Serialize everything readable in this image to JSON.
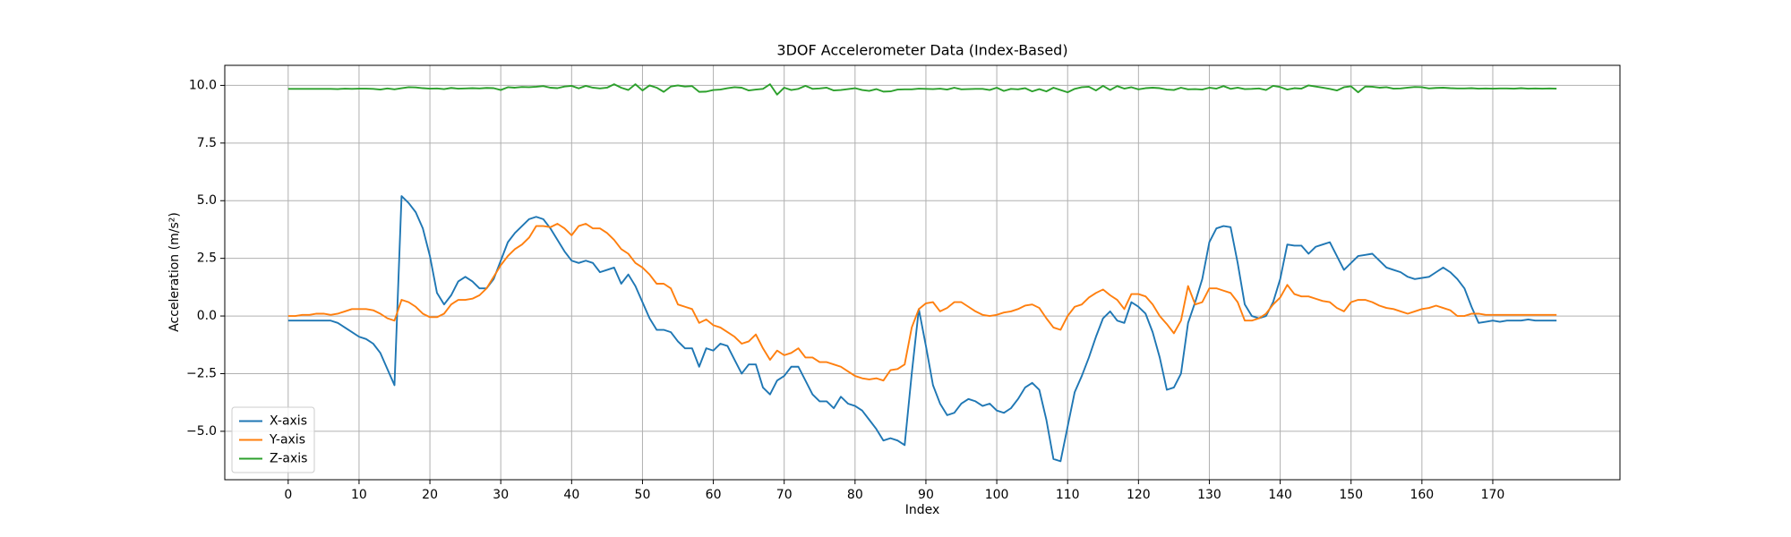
{
  "chart_data": {
    "type": "line",
    "title": "3DOF Accelerometer Data (Index-Based)",
    "x_label": "Index",
    "y_label": "Acceleration (m/s²)",
    "x": [
      0,
      1,
      2,
      3,
      4,
      5,
      6,
      7,
      8,
      9,
      10,
      11,
      12,
      13,
      14,
      15,
      16,
      17,
      18,
      19,
      20,
      21,
      22,
      23,
      24,
      25,
      26,
      27,
      28,
      29,
      30,
      31,
      32,
      33,
      34,
      35,
      36,
      37,
      38,
      39,
      40,
      41,
      42,
      43,
      44,
      45,
      46,
      47,
      48,
      49,
      50,
      51,
      52,
      53,
      54,
      55,
      56,
      57,
      58,
      59,
      60,
      61,
      62,
      63,
      64,
      65,
      66,
      67,
      68,
      69,
      70,
      71,
      72,
      73,
      74,
      75,
      76,
      77,
      78,
      79,
      80,
      81,
      82,
      83,
      84,
      85,
      86,
      87,
      88,
      89,
      90,
      91,
      92,
      93,
      94,
      95,
      96,
      97,
      98,
      99,
      100,
      101,
      102,
      103,
      104,
      105,
      106,
      107,
      108,
      109,
      110,
      111,
      112,
      113,
      114,
      115,
      116,
      117,
      118,
      119,
      120,
      121,
      122,
      123,
      124,
      125,
      126,
      127,
      128,
      129,
      130,
      131,
      132,
      133,
      134,
      135,
      136,
      137,
      138,
      139,
      140,
      141,
      142,
      143,
      144,
      145,
      146,
      147,
      148,
      149,
      150,
      151,
      152,
      153,
      154,
      155,
      156,
      157,
      158,
      159,
      160,
      161,
      162,
      163,
      164,
      165,
      166,
      167,
      168,
      169,
      170,
      171,
      172,
      173,
      174,
      175,
      176,
      177,
      178,
      179
    ],
    "series": [
      {
        "name": "X-axis",
        "color": "#1f77b4",
        "values": [
          -0.2,
          -0.2,
          -0.2,
          -0.2,
          -0.2,
          -0.2,
          -0.2,
          -0.3,
          -0.5,
          -0.7,
          -0.9,
          -1.0,
          -1.2,
          -1.6,
          -2.3,
          -3.0,
          5.2,
          4.9,
          4.5,
          3.8,
          2.6,
          1.0,
          0.5,
          0.9,
          1.5,
          1.7,
          1.5,
          1.2,
          1.2,
          1.6,
          2.4,
          3.2,
          3.6,
          3.9,
          4.2,
          4.3,
          4.2,
          3.8,
          3.3,
          2.8,
          2.4,
          2.3,
          2.4,
          2.3,
          1.9,
          2.0,
          2.1,
          1.4,
          1.8,
          1.3,
          0.6,
          -0.1,
          -0.6,
          -0.6,
          -0.7,
          -1.1,
          -1.4,
          -1.4,
          -2.2,
          -1.4,
          -1.5,
          -1.2,
          -1.3,
          -1.9,
          -2.5,
          -2.1,
          -2.1,
          -3.1,
          -3.4,
          -2.8,
          -2.6,
          -2.2,
          -2.2,
          -2.8,
          -3.4,
          -3.7,
          -3.7,
          -4.0,
          -3.5,
          -3.8,
          -3.9,
          -4.1,
          -4.5,
          -4.9,
          -5.4,
          -5.3,
          -5.4,
          -5.6,
          -2.5,
          0.3,
          -1.3,
          -3.0,
          -3.8,
          -4.3,
          -4.2,
          -3.8,
          -3.6,
          -3.7,
          -3.9,
          -3.8,
          -4.1,
          -4.2,
          -4.0,
          -3.6,
          -3.1,
          -2.9,
          -3.2,
          -4.5,
          -6.2,
          -6.3,
          -4.8,
          -3.3,
          -2.6,
          -1.8,
          -0.9,
          -0.1,
          0.2,
          -0.2,
          -0.3,
          0.6,
          0.4,
          0.1,
          -0.7,
          -1.8,
          -3.2,
          -3.1,
          -2.5,
          -0.3,
          0.6,
          1.6,
          3.2,
          3.8,
          3.9,
          3.85,
          2.3,
          0.5,
          0.0,
          -0.1,
          0.0,
          0.6,
          1.6,
          3.1,
          3.05,
          3.05,
          2.7,
          3.0,
          3.1,
          3.2,
          2.6,
          2.0,
          2.3,
          2.6,
          2.65,
          2.7,
          2.4,
          2.1,
          2.0,
          1.9,
          1.7,
          1.6,
          1.65,
          1.7,
          1.9,
          2.1,
          1.9,
          1.6,
          1.2,
          0.4,
          -0.3,
          -0.25,
          -0.2,
          -0.25,
          -0.2,
          -0.2,
          -0.2,
          -0.15,
          -0.2,
          -0.2,
          -0.2,
          -0.2
        ]
      },
      {
        "name": "Y-axis",
        "color": "#ff7f0e",
        "values": [
          0.0,
          0.0,
          0.05,
          0.05,
          0.1,
          0.1,
          0.05,
          0.1,
          0.2,
          0.3,
          0.3,
          0.3,
          0.25,
          0.1,
          -0.1,
          -0.2,
          0.7,
          0.6,
          0.4,
          0.1,
          -0.05,
          -0.05,
          0.1,
          0.5,
          0.7,
          0.7,
          0.75,
          0.9,
          1.2,
          1.7,
          2.2,
          2.6,
          2.9,
          3.1,
          3.4,
          3.9,
          3.9,
          3.85,
          4.0,
          3.8,
          3.5,
          3.9,
          4.0,
          3.8,
          3.8,
          3.6,
          3.3,
          2.9,
          2.7,
          2.3,
          2.1,
          1.8,
          1.4,
          1.4,
          1.2,
          0.5,
          0.4,
          0.3,
          -0.3,
          -0.15,
          -0.4,
          -0.5,
          -0.7,
          -0.9,
          -1.2,
          -1.1,
          -0.8,
          -1.4,
          -1.9,
          -1.5,
          -1.7,
          -1.6,
          -1.4,
          -1.8,
          -1.8,
          -2.0,
          -2.0,
          -2.1,
          -2.2,
          -2.4,
          -2.6,
          -2.7,
          -2.75,
          -2.7,
          -2.8,
          -2.35,
          -2.3,
          -2.1,
          -0.5,
          0.3,
          0.55,
          0.6,
          0.2,
          0.35,
          0.6,
          0.6,
          0.4,
          0.2,
          0.05,
          0.0,
          0.05,
          0.15,
          0.2,
          0.3,
          0.45,
          0.5,
          0.35,
          -0.1,
          -0.5,
          -0.6,
          0.0,
          0.4,
          0.5,
          0.8,
          1.0,
          1.15,
          0.9,
          0.7,
          0.3,
          0.95,
          0.95,
          0.85,
          0.5,
          0.0,
          -0.35,
          -0.75,
          -0.2,
          1.3,
          0.5,
          0.6,
          1.2,
          1.2,
          1.1,
          1.0,
          0.6,
          -0.2,
          -0.2,
          -0.1,
          0.1,
          0.5,
          0.8,
          1.35,
          0.95,
          0.85,
          0.85,
          0.75,
          0.65,
          0.6,
          0.35,
          0.2,
          0.6,
          0.7,
          0.7,
          0.6,
          0.45,
          0.35,
          0.3,
          0.2,
          0.1,
          0.2,
          0.3,
          0.35,
          0.45,
          0.35,
          0.25,
          0.0,
          0.0,
          0.1,
          0.1,
          0.05,
          0.05,
          0.05,
          0.05,
          0.05,
          0.05,
          0.05,
          0.05,
          0.05,
          0.05,
          0.05
        ]
      },
      {
        "name": "Z-axis",
        "color": "#2ca02c",
        "values": [
          9.85,
          9.85,
          9.85,
          9.85,
          9.85,
          9.85,
          9.85,
          9.84,
          9.86,
          9.85,
          9.86,
          9.86,
          9.85,
          9.82,
          9.87,
          9.83,
          9.88,
          9.92,
          9.91,
          9.88,
          9.86,
          9.87,
          9.84,
          9.89,
          9.86,
          9.87,
          9.88,
          9.87,
          9.89,
          9.88,
          9.8,
          9.92,
          9.9,
          9.93,
          9.92,
          9.94,
          9.97,
          9.9,
          9.88,
          9.95,
          9.98,
          9.87,
          9.98,
          9.9,
          9.87,
          9.9,
          10.05,
          9.9,
          9.8,
          10.05,
          9.78,
          10.0,
          9.9,
          9.72,
          9.95,
          10.0,
          9.95,
          9.97,
          9.72,
          9.73,
          9.8,
          9.82,
          9.88,
          9.92,
          9.9,
          9.78,
          9.82,
          9.85,
          10.05,
          9.6,
          9.9,
          9.8,
          9.85,
          9.98,
          9.85,
          9.87,
          9.9,
          9.78,
          9.8,
          9.84,
          9.88,
          9.8,
          9.76,
          9.84,
          9.73,
          9.74,
          9.82,
          9.83,
          9.83,
          9.86,
          9.85,
          9.84,
          9.86,
          9.82,
          9.9,
          9.83,
          9.84,
          9.85,
          9.85,
          9.8,
          9.9,
          9.76,
          9.85,
          9.83,
          9.88,
          9.74,
          9.84,
          9.74,
          9.9,
          9.8,
          9.7,
          9.85,
          9.92,
          9.94,
          9.78,
          9.98,
          9.8,
          9.97,
          9.86,
          9.92,
          9.83,
          9.88,
          9.9,
          9.88,
          9.82,
          9.8,
          9.9,
          9.83,
          9.84,
          9.82,
          9.9,
          9.86,
          9.97,
          9.85,
          9.9,
          9.84,
          9.85,
          9.87,
          9.8,
          9.98,
          9.93,
          9.82,
          9.88,
          9.86,
          10.0,
          9.95,
          9.9,
          9.85,
          9.78,
          9.92,
          9.96,
          9.7,
          9.95,
          9.94,
          9.9,
          9.92,
          9.86,
          9.87,
          9.9,
          9.93,
          9.92,
          9.87,
          9.89,
          9.9,
          9.88,
          9.87,
          9.87,
          9.88,
          9.86,
          9.87,
          9.86,
          9.87,
          9.87,
          9.86,
          9.88,
          9.86,
          9.87,
          9.86,
          9.87,
          9.86
        ]
      }
    ],
    "xlim": [
      -8.95,
      187.95
    ],
    "ylim": [
      -7.1,
      10.87
    ],
    "xticks": [
      0,
      10,
      20,
      30,
      40,
      50,
      60,
      70,
      80,
      90,
      100,
      110,
      120,
      130,
      140,
      150,
      160,
      170
    ],
    "yticks": [
      {
        "value": -5,
        "label": "−5.0"
      },
      {
        "value": -2.5,
        "label": "−2.5"
      },
      {
        "value": 0,
        "label": "0.0"
      },
      {
        "value": 2.5,
        "label": "2.5"
      },
      {
        "value": 5,
        "label": "5.0"
      },
      {
        "value": 7.5,
        "label": "7.5"
      },
      {
        "value": 10,
        "label": "10.0"
      }
    ],
    "grid": true,
    "legend": "lower left"
  }
}
